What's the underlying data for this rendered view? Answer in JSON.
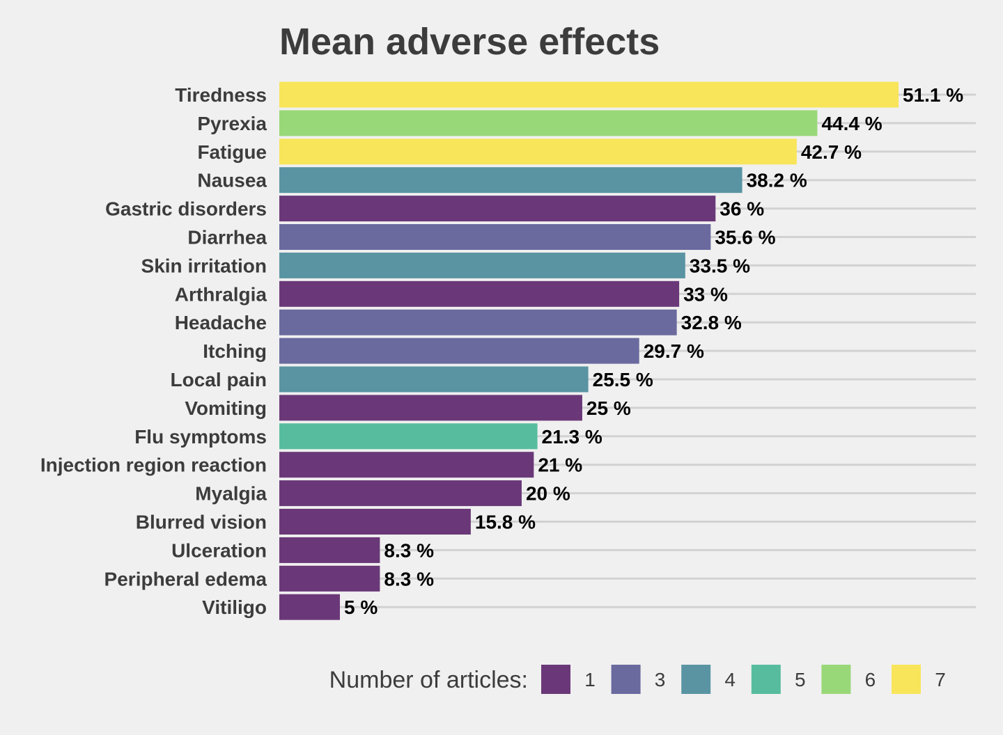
{
  "chart_data": {
    "type": "bar",
    "orientation": "horizontal",
    "title": "Mean adverse effects",
    "xlabel": "",
    "ylabel": "",
    "value_suffix": " %",
    "xlim": [
      0,
      57
    ],
    "grid": true,
    "legend_placement": "bottom",
    "legend_title": "Number of articles:",
    "legend": [
      {
        "label": "1",
        "color": "#6a3878"
      },
      {
        "label": "3",
        "color": "#6a6a9f"
      },
      {
        "label": "4",
        "color": "#5a94a3"
      },
      {
        "label": "5",
        "color": "#57bc9e"
      },
      {
        "label": "6",
        "color": "#99d878"
      },
      {
        "label": "7",
        "color": "#f8e55a"
      }
    ],
    "categories": [
      "Tiredness",
      "Pyrexia",
      "Fatigue",
      "Nausea",
      "Gastric disorders",
      "Diarrhea",
      "Skin irritation",
      "Arthralgia",
      "Headache",
      "Itching",
      "Local pain",
      "Vomiting",
      "Flu symptoms",
      "Injection region reaction",
      "Myalgia",
      "Blurred vision",
      "Ulceration",
      "Peripheral edema",
      "Vitiligo"
    ],
    "values": [
      51.1,
      44.4,
      42.7,
      38.2,
      36,
      35.6,
      33.5,
      33,
      32.8,
      29.7,
      25.5,
      25,
      21.3,
      21,
      20,
      15.8,
      8.3,
      8.3,
      5
    ],
    "value_labels": [
      "51.1 %",
      "44.4 %",
      "42.7 %",
      "38.2 %",
      "36 %",
      "35.6 %",
      "33.5 %",
      "33 %",
      "32.8 %",
      "29.7 %",
      "25.5 %",
      "25 %",
      "21.3 %",
      "21 %",
      "20 %",
      "15.8 %",
      "8.3 %",
      "8.3 %",
      "5 %"
    ],
    "article_counts": [
      7,
      6,
      7,
      4,
      1,
      3,
      4,
      1,
      3,
      3,
      4,
      1,
      5,
      1,
      1,
      1,
      1,
      1,
      1
    ]
  }
}
